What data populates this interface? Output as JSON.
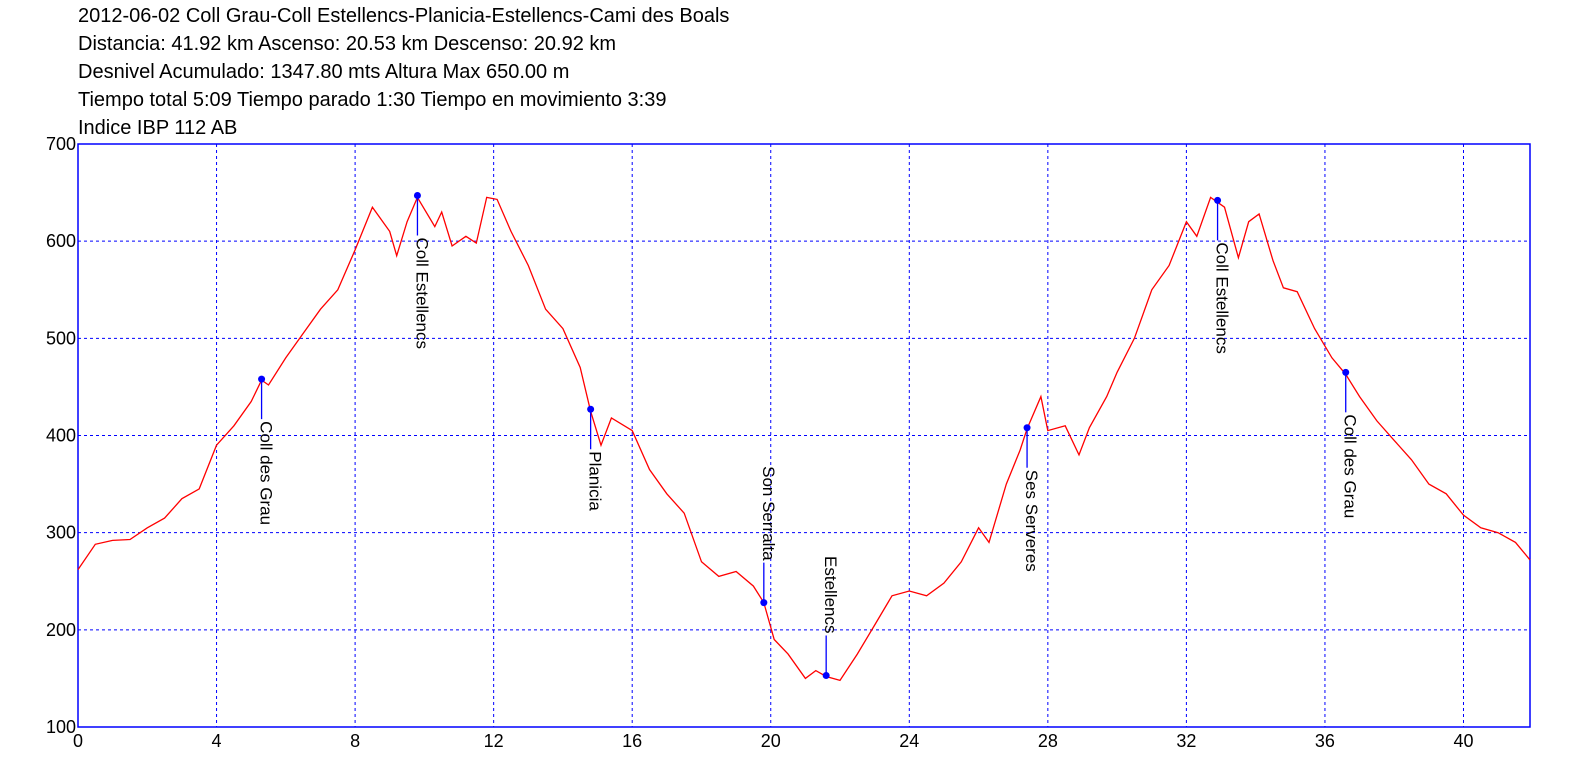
{
  "chart_data": {
    "type": "line",
    "title_lines": [
      "2012-06-02 Coll Grau-Coll Estellencs-Planicia-Estellencs-Cami des Boals",
      "Distancia: 41.92 km Ascenso: 20.53 km Descenso: 20.92 km",
      "Desnivel Acumulado: 1347.80 mts  Altura Max 650.00 m",
      "Tiempo total 5:09 Tiempo parado 1:30 Tiempo en movimiento 3:39",
      "Indice IBP 112 AB"
    ],
    "xlim": [
      0,
      41.92
    ],
    "ylim": [
      100,
      700
    ],
    "xticks": [
      0,
      4,
      8,
      12,
      16,
      20,
      24,
      28,
      32,
      36,
      40
    ],
    "yticks": [
      100,
      200,
      300,
      400,
      500,
      600,
      700
    ],
    "grid": true,
    "grid_color": "#0000ff",
    "axis_color": "#0000ff",
    "series": [
      {
        "color": "#ff0000",
        "x": [
          0,
          0.5,
          1,
          1.5,
          2,
          2.5,
          3,
          3.5,
          4,
          4.5,
          5,
          5.3,
          5.5,
          6,
          6.5,
          7,
          7.5,
          8,
          8.5,
          9,
          9.2,
          9.5,
          9.8,
          10.3,
          10.5,
          10.8,
          11.2,
          11.5,
          11.8,
          12.1,
          12.5,
          13,
          13.5,
          14,
          14.5,
          14.8,
          15.1,
          15.4,
          16,
          16.5,
          17,
          17.5,
          18,
          18.5,
          19,
          19.5,
          19.8,
          20.1,
          20.5,
          21,
          21.3,
          21.6,
          22,
          22.5,
          23,
          23.5,
          24,
          24.5,
          25,
          25.5,
          26,
          26.3,
          26.8,
          27.2,
          27.4,
          27.8,
          28,
          28.5,
          28.9,
          29.2,
          29.7,
          30,
          30.5,
          31,
          31.5,
          32,
          32.3,
          32.7,
          32.9,
          33.1,
          33.5,
          33.8,
          34.1,
          34.5,
          34.8,
          35.2,
          35.7,
          36.2,
          36.6,
          37,
          37.5,
          38,
          38.5,
          39,
          39.5,
          40,
          40.5,
          41,
          41.5,
          41.92
        ],
        "values": [
          262,
          288,
          292,
          293,
          305,
          315,
          335,
          345,
          390,
          410,
          435,
          457,
          452,
          480,
          505,
          530,
          550,
          591,
          635,
          610,
          585,
          620,
          645,
          615,
          630,
          595,
          605,
          598,
          645,
          643,
          610,
          575,
          530,
          510,
          470,
          425,
          390,
          418,
          405,
          365,
          340,
          320,
          270,
          255,
          260,
          245,
          228,
          190,
          175,
          150,
          158,
          152,
          148,
          175,
          205,
          235,
          240,
          235,
          248,
          270,
          305,
          290,
          350,
          385,
          407,
          440,
          405,
          410,
          380,
          408,
          440,
          465,
          500,
          550,
          575,
          620,
          605,
          645,
          640,
          635,
          583,
          620,
          628,
          580,
          552,
          548,
          510,
          480,
          463,
          440,
          415,
          395,
          375,
          350,
          340,
          318,
          305,
          300,
          290,
          272
        ]
      }
    ],
    "waypoints": [
      {
        "label": "Coll des Grau",
        "x": 5.3,
        "y": 458
      },
      {
        "label": "Coll Estellencs",
        "x": 9.8,
        "y": 647
      },
      {
        "label": "Planicia",
        "x": 14.8,
        "y": 427
      },
      {
        "label": "Son Serralta",
        "x": 19.8,
        "y": 228
      },
      {
        "label": "Estellencs",
        "x": 21.6,
        "y": 153
      },
      {
        "label": "Ses Serveres",
        "x": 27.4,
        "y": 408
      },
      {
        "label": "Coll Estellencs",
        "x": 32.9,
        "y": 642
      },
      {
        "label": "Coll des Grau",
        "x": 36.6,
        "y": 465
      }
    ],
    "waypoint_color": "#0000ff"
  }
}
